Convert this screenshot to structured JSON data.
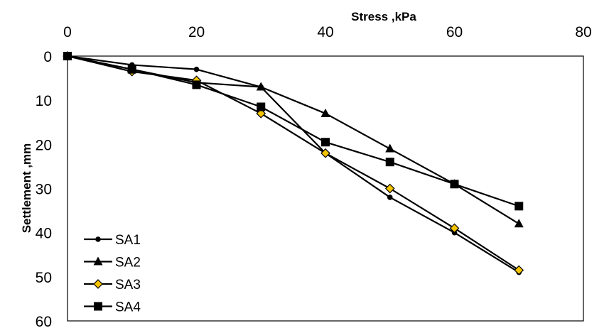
{
  "chart_data": {
    "type": "line",
    "title": "",
    "xlabel": "Stress ,kPa",
    "ylabel": "Settlement ,mm",
    "xlim": [
      0,
      80
    ],
    "ylim": [
      0,
      60
    ],
    "y_inverted": true,
    "x_axis_position": "top",
    "x_ticks": [
      "0",
      "20",
      "40",
      "60",
      "80"
    ],
    "y_ticks": [
      "0",
      "10",
      "20",
      "30",
      "40",
      "50",
      "60"
    ],
    "grid": false,
    "legend_position": "bottom-left",
    "series": [
      {
        "name": "SA1",
        "marker": "circle",
        "color": "#000000",
        "x": [
          0,
          10,
          20,
          30,
          40,
          50,
          60,
          70
        ],
        "y": [
          0,
          2,
          3,
          7,
          22,
          32,
          40,
          49
        ]
      },
      {
        "name": "SA2",
        "marker": "triangle",
        "color": "#000000",
        "x": [
          0,
          10,
          20,
          30,
          40,
          50,
          60,
          70
        ],
        "y": [
          0,
          3,
          6,
          7,
          13,
          21,
          29,
          38
        ]
      },
      {
        "name": "SA3",
        "marker": "diamond",
        "color": "#000000",
        "marker_fill": "#f5c400",
        "x": [
          0,
          10,
          20,
          30,
          40,
          50,
          60,
          70
        ],
        "y": [
          0,
          3.5,
          5.5,
          13,
          22,
          30,
          39,
          48.5
        ]
      },
      {
        "name": "SA4",
        "marker": "square",
        "color": "#000000",
        "x": [
          0,
          10,
          20,
          30,
          40,
          50,
          60,
          70
        ],
        "y": [
          0,
          3,
          6.5,
          11.5,
          19.5,
          24,
          29,
          34
        ]
      }
    ]
  }
}
